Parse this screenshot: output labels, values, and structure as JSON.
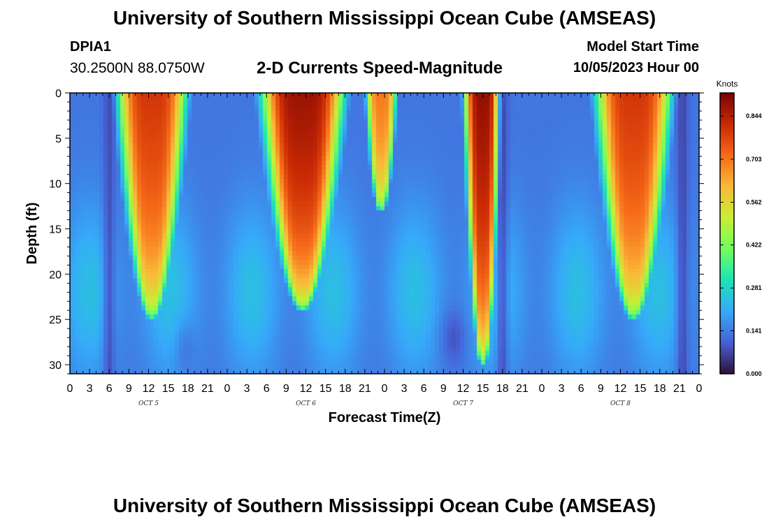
{
  "header": {
    "title": "University of Southern Mississippi Ocean Cube (AMSEAS)",
    "station_id": "DPIA1",
    "station_coords": "30.2500N  88.0750W",
    "plot_title": "2-D Currents Speed-Magnitude",
    "model_start_label": "Model Start Time",
    "model_start_value": "10/05/2023 Hour 00"
  },
  "footer": {
    "title": "University of Southern Mississippi Ocean Cube (AMSEAS)"
  },
  "chart_data": {
    "type": "heatmap",
    "title": "2-D Currents Speed-Magnitude",
    "xlabel": "Forecast Time(Z)",
    "ylabel": "Depth (ft)",
    "xlim": [
      0,
      96
    ],
    "ylim": [
      0,
      31
    ],
    "x_tick_labels": [
      "0",
      "3",
      "6",
      "9",
      "12",
      "15",
      "18",
      "21",
      "0",
      "3",
      "6",
      "9",
      "12",
      "15",
      "18",
      "21",
      "0",
      "3",
      "6",
      "9",
      "12",
      "15",
      "18",
      "21",
      "0",
      "3",
      "6",
      "9",
      "12",
      "15",
      "18",
      "21",
      "0"
    ],
    "y_ticks": [
      0,
      5,
      10,
      15,
      20,
      25,
      30
    ],
    "y_tick_labels": [
      "0",
      "5",
      "10",
      "15",
      "20",
      "25",
      "30"
    ],
    "date_labels": [
      {
        "text": "OCT 5",
        "hour": 12
      },
      {
        "text": "OCT 6",
        "hour": 36
      },
      {
        "text": "OCT 7",
        "hour": 60
      },
      {
        "text": "OCT 8",
        "hour": 84
      }
    ],
    "colorbar": {
      "label": "Knots",
      "min": 0.0,
      "max": 0.92,
      "ticks": [
        0.0,
        0.141,
        0.281,
        0.422,
        0.562,
        0.703,
        0.844
      ],
      "tick_labels": [
        "0.000",
        "0.141",
        "0.281",
        "0.422",
        "0.562",
        "0.703",
        "0.844"
      ],
      "colors": [
        "#30123b",
        "#4662d7",
        "#36aaf9",
        "#1ae4b6",
        "#72fe5e",
        "#c8ef34",
        "#faba39",
        "#f66b19",
        "#ca2a04",
        "#7a0403"
      ]
    },
    "features": [
      {
        "kind": "surface_jet",
        "center_hour": 12.5,
        "peak_knots": 0.8,
        "depth_reach_ft": 25,
        "surface_half_width_hours": 5
      },
      {
        "kind": "surface_jet",
        "center_hour": 35.5,
        "peak_knots": 0.88,
        "depth_reach_ft": 24,
        "surface_half_width_hours": 6
      },
      {
        "kind": "surface_jet",
        "center_hour": 47.5,
        "peak_knots": 0.7,
        "depth_reach_ft": 13,
        "surface_half_width_hours": 2
      },
      {
        "kind": "surface_jet",
        "center_hour": 63.0,
        "peak_knots": 0.89,
        "depth_reach_ft": 30,
        "surface_half_width_hours": 2.5
      },
      {
        "kind": "surface_jet",
        "center_hour": 86.0,
        "peak_knots": 0.8,
        "depth_reach_ft": 25,
        "surface_half_width_hours": 5.5
      },
      {
        "kind": "slack",
        "center_hour": 6.0,
        "min_knots": 0.06
      },
      {
        "kind": "slack",
        "center_hour": 66.0,
        "min_knots": 0.05
      },
      {
        "kind": "slack",
        "center_hour": 93.5,
        "min_knots": 0.05
      }
    ]
  }
}
